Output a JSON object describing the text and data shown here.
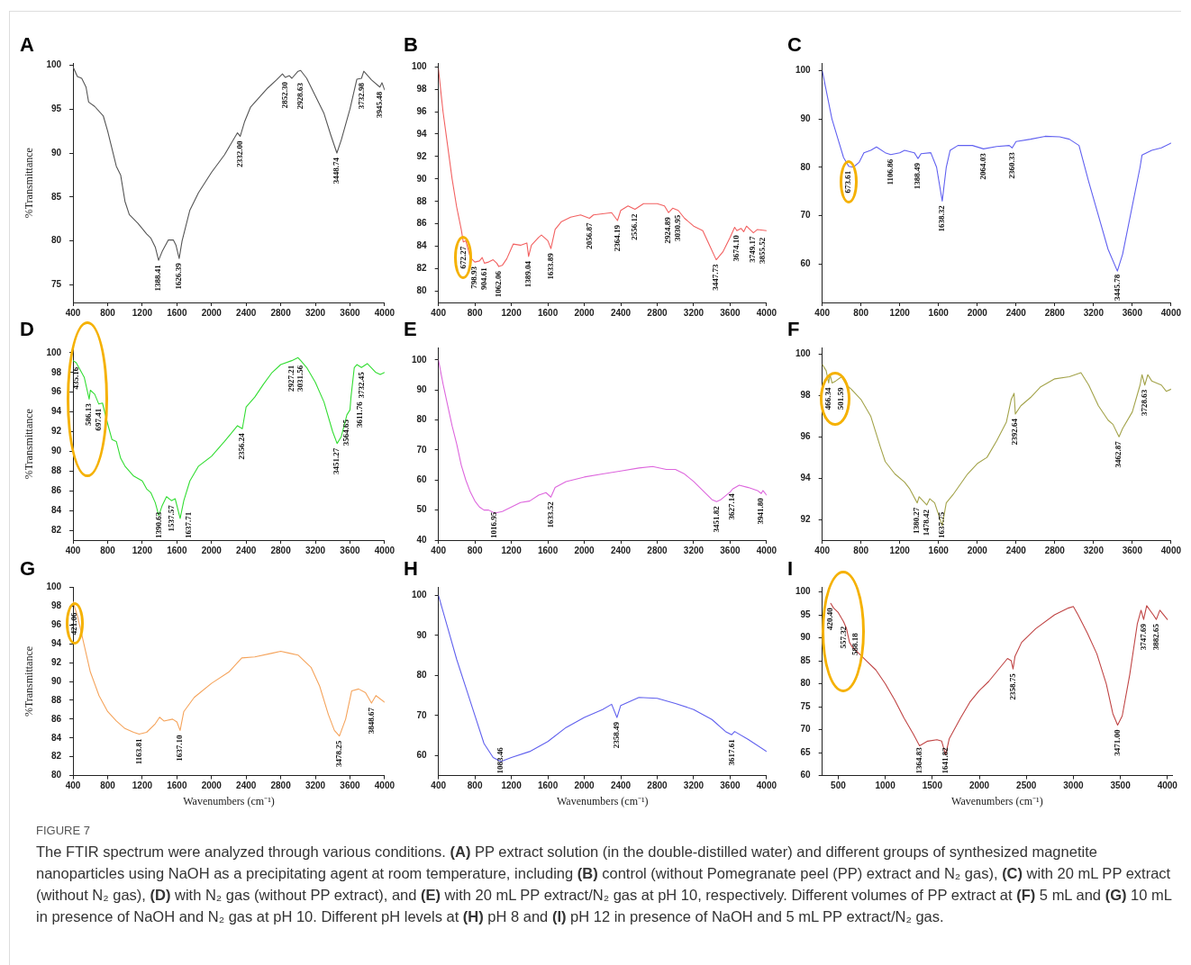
{
  "chart_data": [
    {
      "type": "line",
      "title": "A",
      "ylabel": "%Transmittance",
      "color": "#555555",
      "xlim": [
        400,
        4000
      ],
      "ylim": [
        73,
        100.2
      ],
      "xticks": [
        400,
        800,
        1200,
        1600,
        2000,
        2400,
        2800,
        3200,
        3600,
        4000
      ],
      "yticks": [
        75,
        80,
        85,
        90,
        95,
        100
      ],
      "x": [
        400,
        450,
        500,
        550,
        580,
        650,
        750,
        800,
        900,
        950,
        1000,
        1050,
        1150,
        1250,
        1300,
        1350,
        1388.41,
        1430,
        1500,
        1560,
        1590,
        1626.39,
        1660,
        1750,
        1850,
        2000,
        2150,
        2300,
        2332,
        2380,
        2450,
        2550,
        2650,
        2750,
        2820,
        2852.3,
        2900,
        2928.63,
        3000,
        3030,
        3100,
        3200,
        3300,
        3380,
        3448.74,
        3500,
        3600,
        3680,
        3732.98,
        3760,
        3850,
        3945.48,
        3970,
        4000
      ],
      "values": [
        99.8,
        98.7,
        98.5,
        97.5,
        95.8,
        95.3,
        94.2,
        92.5,
        88.5,
        87.5,
        84.5,
        83,
        82,
        80.8,
        80.3,
        79.3,
        77.8,
        78.8,
        80.1,
        80.1,
        79.5,
        78,
        80,
        83.5,
        85.5,
        87.8,
        89.8,
        92.3,
        91.9,
        93.5,
        95.2,
        96.3,
        97.4,
        98.3,
        99,
        98.6,
        98.8,
        98.5,
        99.3,
        99.4,
        98.5,
        96.5,
        94.5,
        92,
        90,
        91.5,
        95,
        98.4,
        98.5,
        99.3,
        98.3,
        97.5,
        98,
        97.2
      ],
      "annotations": [
        {
          "text": "1388.41",
          "x": 1388.41,
          "y": 77.8
        },
        {
          "text": "1626.39",
          "x": 1626.39,
          "y": 78
        },
        {
          "text": "2332.00",
          "x": 2332,
          "y": 91.9
        },
        {
          "text": "2852.30",
          "x": 2852.3,
          "y": 98.6
        },
        {
          "text": "2928.63",
          "x": 2928.63,
          "y": 98.5
        },
        {
          "text": "3448.74",
          "x": 3448.74,
          "y": 90
        },
        {
          "text": "3732.98",
          "x": 3732.98,
          "y": 98.5
        },
        {
          "text": "3945.48",
          "x": 3945.48,
          "y": 97.5
        }
      ]
    },
    {
      "type": "line",
      "title": "B",
      "color": "#f26161",
      "xlim": [
        400,
        4000
      ],
      "ylim": [
        79,
        100.3
      ],
      "xticks": [
        400,
        800,
        1200,
        1600,
        2000,
        2400,
        2800,
        3200,
        3600,
        4000
      ],
      "yticks": [
        80,
        82,
        84,
        86,
        88,
        90,
        92,
        94,
        96,
        98,
        100
      ],
      "x": [
        400,
        450,
        500,
        550,
        600,
        650,
        672.27,
        700,
        750,
        798.93,
        850,
        880,
        904.61,
        950,
        1000,
        1040,
        1062.06,
        1100,
        1150,
        1220,
        1300,
        1370,
        1389.04,
        1420,
        1500,
        1530,
        1600,
        1633.89,
        1680,
        1750,
        1850,
        1960,
        2056.87,
        2100,
        2300,
        2364.19,
        2400,
        2480,
        2556.12,
        2650,
        2800,
        2880,
        2924.89,
        2970,
        3030.95,
        3100,
        3200,
        3300,
        3380,
        3447.73,
        3520,
        3600,
        3650,
        3674.1,
        3720,
        3749.17,
        3780,
        3855.52,
        3900,
        4000
      ],
      "values": [
        99.8,
        96,
        93,
        90,
        87.5,
        85.5,
        84.4,
        84.5,
        83,
        82.6,
        82.7,
        83,
        82.5,
        82.6,
        82.8,
        82.5,
        82.2,
        82.3,
        82.9,
        84.2,
        84.1,
        84.3,
        83.1,
        84.1,
        84.8,
        85,
        84.5,
        83.8,
        85.5,
        86.2,
        86.6,
        86.8,
        86.5,
        86.8,
        87,
        86.3,
        87.2,
        87.6,
        87.3,
        87.8,
        87.8,
        87.6,
        87,
        87.4,
        87.2,
        86.5,
        85.8,
        85.4,
        84,
        82.8,
        83.5,
        84.8,
        85.7,
        85.4,
        85.6,
        85.3,
        85.8,
        85.2,
        85.5,
        85.4
      ],
      "annotations": [
        {
          "text": "672.27",
          "x": 672.27,
          "y": 84.4
        },
        {
          "text": "798.93",
          "x": 798.93,
          "y": 82.6
        },
        {
          "text": "904.61",
          "x": 904.61,
          "y": 82.5
        },
        {
          "text": "1062.06",
          "x": 1062.06,
          "y": 82.2
        },
        {
          "text": "1389.04",
          "x": 1389.04,
          "y": 83.1
        },
        {
          "text": "1633.89",
          "x": 1633.89,
          "y": 83.8
        },
        {
          "text": "2056.87",
          "x": 2056.87,
          "y": 86.5
        },
        {
          "text": "2364.19",
          "x": 2364.19,
          "y": 86.3
        },
        {
          "text": "2556.12",
          "x": 2556.12,
          "y": 87.3
        },
        {
          "text": "2924.89",
          "x": 2924.89,
          "y": 87
        },
        {
          "text": "3030.95",
          "x": 3030.95,
          "y": 87.2
        },
        {
          "text": "3447.73",
          "x": 3447.73,
          "y": 82.8
        },
        {
          "text": "3674.10",
          "x": 3674.1,
          "y": 85.4
        },
        {
          "text": "3749.17",
          "x": 3749.17,
          "y": 85.3
        },
        {
          "text": "3855.52",
          "x": 3855.52,
          "y": 85.2
        }
      ]
    },
    {
      "type": "line",
      "title": "C",
      "color": "#6060f0",
      "xlim": [
        400,
        4000
      ],
      "ylim": [
        52,
        101.5
      ],
      "xticks": [
        400,
        800,
        1200,
        1600,
        2000,
        2400,
        2800,
        3200,
        3600,
        4000
      ],
      "yticks": [
        60,
        70,
        80,
        90,
        100
      ],
      "x": [
        400,
        450,
        500,
        560,
        620,
        673.61,
        720,
        780,
        830,
        900,
        960,
        1050,
        1106.86,
        1200,
        1250,
        1350,
        1388.49,
        1420,
        1520,
        1580,
        1638.32,
        1680,
        1720,
        1800,
        1950,
        2064.03,
        2200,
        2330,
        2360.33,
        2400,
        2550,
        2700,
        2850,
        2950,
        3050,
        3150,
        3250,
        3350,
        3445.78,
        3500,
        3600,
        3680,
        3700,
        3800,
        3900,
        4000
      ],
      "values": [
        100,
        95,
        90,
        86,
        82,
        80.2,
        80,
        81,
        83,
        83.5,
        84.2,
        83,
        82.6,
        83,
        83.5,
        83,
        81.8,
        82.8,
        83,
        80,
        73,
        80,
        83.5,
        84.5,
        84.5,
        83.8,
        84.3,
        84.5,
        84,
        85.3,
        85.8,
        86.4,
        86.3,
        85.8,
        84.5,
        77,
        70,
        63,
        58.5,
        62,
        72,
        80,
        82.5,
        83.5,
        84,
        85
      ],
      "annotations": [
        {
          "text": "673.61",
          "x": 673.61,
          "y": 80.2
        },
        {
          "text": "1106.86",
          "x": 1106.86,
          "y": 82.6
        },
        {
          "text": "1388.49",
          "x": 1388.49,
          "y": 81.8
        },
        {
          "text": "1638.32",
          "x": 1638.32,
          "y": 73
        },
        {
          "text": "2064.03",
          "x": 2064.03,
          "y": 83.8
        },
        {
          "text": "2360.33",
          "x": 2360.33,
          "y": 84
        },
        {
          "text": "3445.78",
          "x": 3445.78,
          "y": 58.5
        }
      ]
    },
    {
      "type": "line",
      "title": "D",
      "ylabel": "%Transmittance",
      "color": "#33dd33",
      "xlim": [
        400,
        4000
      ],
      "ylim": [
        81,
        100.5
      ],
      "xticks": [
        400,
        800,
        1200,
        1600,
        2000,
        2400,
        2800,
        3200,
        3600,
        4000
      ],
      "yticks": [
        82,
        84,
        86,
        88,
        90,
        92,
        94,
        96,
        98,
        100
      ],
      "x": [
        400,
        435.16,
        480,
        530,
        586.13,
        600,
        650,
        697.41,
        740,
        800,
        850,
        900,
        950,
        1000,
        1100,
        1200,
        1250,
        1300,
        1350,
        1390.63,
        1430,
        1480,
        1537.57,
        1580,
        1637.71,
        1680,
        1750,
        1850,
        2000,
        2150,
        2300,
        2356.24,
        2400,
        2500,
        2600,
        2700,
        2800,
        2927.21,
        3000,
        3031.56,
        3100,
        3200,
        3300,
        3400,
        3451.27,
        3500,
        3564.65,
        3600,
        3611.76,
        3650,
        3680,
        3732.45,
        3800,
        3900,
        3950,
        4000
      ],
      "values": [
        99.2,
        99,
        98.3,
        97.5,
        95.3,
        96.2,
        95.8,
        94.8,
        94.9,
        92.8,
        91.2,
        91,
        89.3,
        88.5,
        87.5,
        87,
        86.2,
        85.8,
        84.8,
        83.5,
        84.5,
        85.4,
        85,
        85.2,
        83.2,
        85,
        87,
        88.5,
        89.5,
        91,
        92.6,
        92.3,
        94.5,
        95.5,
        96.8,
        98,
        98.8,
        99.2,
        99.5,
        99.2,
        98.5,
        97,
        95,
        92,
        90.8,
        91.5,
        93.7,
        94.2,
        95.5,
        98.5,
        98.8,
        98.5,
        98.9,
        98,
        97.8,
        98
      ],
      "annotations": [
        {
          "text": "435.16",
          "x": 435.16,
          "y": 99
        },
        {
          "text": "586.13",
          "x": 586.13,
          "y": 95.3
        },
        {
          "text": "697.41",
          "x": 697.41,
          "y": 94.8
        },
        {
          "text": "1390.63",
          "x": 1390.63,
          "y": 83.5
        },
        {
          "text": "1537.57",
          "x": 1537.57,
          "y": 85
        },
        {
          "text": "1637.71",
          "x": 1637.71,
          "y": 83.2
        },
        {
          "text": "2356.24",
          "x": 2356.24,
          "y": 92.3
        },
        {
          "text": "2927.21",
          "x": 2927.21,
          "y": 99.2
        },
        {
          "text": "3031.56",
          "x": 3031.56,
          "y": 99.2
        },
        {
          "text": "3451.27",
          "x": 3451.27,
          "y": 90.8
        },
        {
          "text": "3564.65",
          "x": 3564.65,
          "y": 93.7
        },
        {
          "text": "3611.76",
          "x": 3611.76,
          "y": 95.5
        },
        {
          "text": "3732.45",
          "x": 3732.45,
          "y": 98.5
        }
      ]
    },
    {
      "type": "line",
      "title": "E",
      "color": "#dd66dd",
      "xlim": [
        400,
        4000
      ],
      "ylim": [
        40,
        104
      ],
      "xticks": [
        400,
        800,
        1200,
        1600,
        2000,
        2400,
        2800,
        3200,
        3600,
        4000
      ],
      "yticks": [
        40,
        50,
        60,
        70,
        80,
        90,
        100
      ],
      "x": [
        400,
        450,
        500,
        550,
        600,
        650,
        700,
        750,
        800,
        850,
        900,
        950,
        1016.95,
        1100,
        1200,
        1300,
        1400,
        1500,
        1580,
        1633.52,
        1680,
        1800,
        2000,
        2200,
        2400,
        2600,
        2750,
        2900,
        3000,
        3100,
        3200,
        3300,
        3400,
        3451.82,
        3500,
        3600,
        3627.14,
        3700,
        3800,
        3900,
        3941.8,
        3960,
        4000
      ],
      "values": [
        100,
        92,
        85,
        78,
        72,
        65,
        60,
        56,
        53,
        51,
        50,
        50,
        49,
        49.5,
        51,
        52.5,
        53,
        55,
        55.8,
        54.3,
        57.5,
        59.5,
        61,
        62,
        63,
        64,
        64.5,
        63.5,
        63.5,
        62,
        59.5,
        56.5,
        53.5,
        52.8,
        53.5,
        56,
        57,
        58.3,
        57.5,
        56.5,
        55.5,
        56.5,
        55
      ],
      "annotations": [
        {
          "text": "1016.95",
          "x": 1016.95,
          "y": 49
        },
        {
          "text": "1633.52",
          "x": 1633.52,
          "y": 54.3
        },
        {
          "text": "3451.82",
          "x": 3451.82,
          "y": 52.8
        },
        {
          "text": "3627.14",
          "x": 3627.14,
          "y": 57
        },
        {
          "text": "3941.80",
          "x": 3941.8,
          "y": 55.5
        }
      ]
    },
    {
      "type": "line",
      "title": "F",
      "color": "#a3a34a",
      "xlim": [
        400,
        4000
      ],
      "ylim": [
        91,
        100.3
      ],
      "xticks": [
        400,
        800,
        1200,
        1600,
        2000,
        2400,
        2800,
        3200,
        3600,
        4000
      ],
      "yticks": [
        92,
        94,
        96,
        98,
        100
      ],
      "x": [
        400,
        440,
        466.34,
        480,
        501.59,
        540,
        600,
        650,
        700,
        800,
        900,
        1000,
        1050,
        1150,
        1250,
        1300,
        1380.27,
        1400,
        1478.42,
        1510,
        1560,
        1637.75,
        1680,
        1750,
        1900,
        2000,
        2100,
        2200,
        2300,
        2350,
        2380,
        2392.64,
        2450,
        2550,
        2650,
        2800,
        2950,
        3070,
        3150,
        3250,
        3350,
        3400,
        3462.87,
        3500,
        3600,
        3680,
        3700,
        3728.63,
        3760,
        3800,
        3900,
        3950,
        4000
      ],
      "values": [
        99.5,
        99.2,
        98.6,
        99,
        98.6,
        98.7,
        98.9,
        98.5,
        98.3,
        97.8,
        97,
        95.5,
        94.8,
        94.2,
        93.8,
        93.5,
        92.8,
        93.1,
        92.7,
        93,
        92.8,
        91.7,
        92.8,
        93.2,
        94.2,
        94.7,
        95,
        95.8,
        96.7,
        97.8,
        98.1,
        97.1,
        97.5,
        97.9,
        98.4,
        98.8,
        98.9,
        99.1,
        98.5,
        97.5,
        96.8,
        96.6,
        96,
        96.4,
        97.2,
        98.5,
        99,
        98.5,
        99,
        98.7,
        98.5,
        98.2,
        98.3
      ],
      "annotations": [
        {
          "text": "466.34",
          "x": 466.34,
          "y": 98.6
        },
        {
          "text": "501.59",
          "x": 501.59,
          "y": 98.6
        },
        {
          "text": "1380.27",
          "x": 1380.27,
          "y": 92.8
        },
        {
          "text": "1478.42",
          "x": 1478.42,
          "y": 92.7
        },
        {
          "text": "1637.75",
          "x": 1637.75,
          "y": 91.7
        },
        {
          "text": "2392.64",
          "x": 2392.64,
          "y": 97.1
        },
        {
          "text": "3462.87",
          "x": 3462.87,
          "y": 96
        },
        {
          "text": "3728.63",
          "x": 3728.63,
          "y": 98.5
        }
      ]
    },
    {
      "type": "line",
      "title": "G",
      "ylabel": "%Transmittance",
      "xlabel": "Wavenumbers (cm⁻¹)",
      "color": "#f5a45c",
      "xlim": [
        400,
        4000
      ],
      "ylim": [
        80,
        100
      ],
      "xticks": [
        400,
        800,
        1200,
        1600,
        2000,
        2400,
        2800,
        3200,
        3600,
        4000
      ],
      "yticks": [
        80,
        82,
        84,
        86,
        88,
        90,
        92,
        94,
        96,
        98,
        100
      ],
      "x": [
        400,
        421.06,
        450,
        500,
        550,
        600,
        700,
        800,
        900,
        1000,
        1100,
        1163.81,
        1250,
        1350,
        1400,
        1450,
        1550,
        1600,
        1637.1,
        1680,
        1800,
        2000,
        2200,
        2350,
        2500,
        2700,
        2800,
        2900,
        3000,
        3150,
        3250,
        3350,
        3420,
        3478.25,
        3550,
        3620,
        3700,
        3780,
        3848.67,
        3900,
        4000
      ],
      "values": [
        98.5,
        97.8,
        97,
        95,
        93,
        91,
        88.5,
        86.8,
        85.8,
        85,
        84.6,
        84.4,
        84.6,
        85.5,
        86.2,
        85.8,
        86,
        85.7,
        84.8,
        86.8,
        88.3,
        89.8,
        91,
        92.5,
        92.6,
        93,
        93.2,
        93,
        92.8,
        91.5,
        89.5,
        86.5,
        84.8,
        84.2,
        86,
        89,
        89.2,
        88.8,
        87.7,
        88.5,
        87.8
      ],
      "annotations": [
        {
          "text": "421.06",
          "x": 421.06,
          "y": 97.8
        },
        {
          "text": "1163.81",
          "x": 1163.81,
          "y": 84.4
        },
        {
          "text": "1637.10",
          "x": 1637.1,
          "y": 84.8
        },
        {
          "text": "3478.25",
          "x": 3478.25,
          "y": 84.2
        },
        {
          "text": "3848.67",
          "x": 3848.67,
          "y": 87.7
        }
      ]
    },
    {
      "type": "line",
      "title": "H",
      "xlabel": "Wavenumbers (cm⁻¹)",
      "color": "#6060ee",
      "xlim": [
        400,
        4000
      ],
      "ylim": [
        55,
        102
      ],
      "xticks": [
        400,
        800,
        1200,
        1600,
        2000,
        2400,
        2800,
        3200,
        3600,
        4000
      ],
      "yticks": [
        60,
        70,
        80,
        90,
        100
      ],
      "x": [
        400,
        450,
        500,
        600,
        700,
        800,
        900,
        1000,
        1083.46,
        1200,
        1400,
        1600,
        1800,
        2000,
        2200,
        2300,
        2358.49,
        2400,
        2600,
        2800,
        3000,
        3200,
        3400,
        3550,
        3617.61,
        3650,
        3800,
        4000
      ],
      "values": [
        100,
        96,
        92,
        84,
        77,
        70,
        63,
        59.5,
        58.5,
        59.5,
        61,
        63.5,
        67,
        69.5,
        71.5,
        72.8,
        69.5,
        72.5,
        74.5,
        74.3,
        73,
        71.5,
        69,
        66,
        65.2,
        66,
        64,
        61
      ],
      "annotations": [
        {
          "text": "1083.46",
          "x": 1083.46,
          "y": 58.5
        },
        {
          "text": "2358.49",
          "x": 2358.49,
          "y": 69.5
        },
        {
          "text": "3617.61",
          "x": 3617.61,
          "y": 65.2
        }
      ]
    },
    {
      "type": "line",
      "title": "I",
      "xlabel": "Wavenumbers (cm⁻¹)",
      "color": "#c04545",
      "xlim": [
        330,
        4050
      ],
      "ylim": [
        60,
        101
      ],
      "xticks": [
        500,
        1000,
        1500,
        2000,
        2500,
        3000,
        3500,
        4000
      ],
      "yticks": [
        60,
        65,
        70,
        75,
        80,
        85,
        90,
        95,
        100
      ],
      "x": [
        420.4,
        450,
        500,
        557.32,
        588.18,
        620,
        650,
        700,
        800,
        900,
        1000,
        1100,
        1200,
        1300,
        1364.83,
        1450,
        1550,
        1600,
        1641.82,
        1680,
        1800,
        1900,
        2000,
        2100,
        2200,
        2300,
        2340,
        2358.75,
        2380,
        2450,
        2600,
        2800,
        2950,
        3000,
        3050,
        3150,
        3250,
        3350,
        3420,
        3471,
        3520,
        3600,
        3680,
        3720,
        3747.69,
        3780,
        3850,
        3882.65,
        3920,
        4000
      ],
      "values": [
        97.5,
        96.5,
        95.5,
        93.5,
        92,
        89,
        88,
        87,
        85,
        83,
        80,
        76.5,
        72.5,
        69,
        66.5,
        67.5,
        67.8,
        67.5,
        64.5,
        68,
        72.5,
        76,
        78.5,
        80.5,
        83,
        85.5,
        85,
        83.2,
        86,
        89,
        92,
        95,
        96.5,
        96.8,
        95,
        91,
        86.5,
        80,
        73.5,
        71,
        73,
        82,
        93,
        96,
        94,
        97,
        95,
        94,
        96,
        94
      ],
      "annotations": [
        {
          "text": "420.40",
          "x": 420.4,
          "y": 97.5
        },
        {
          "text": "557.32",
          "x": 557.32,
          "y": 93.5
        },
        {
          "text": "588.18",
          "x": 588.18,
          "y": 92
        },
        {
          "text": "1364.83",
          "x": 1364.83,
          "y": 66.5
        },
        {
          "text": "1641.82",
          "x": 1641.82,
          "y": 64.5
        },
        {
          "text": "2358.75",
          "x": 2358.75,
          "y": 83.2
        },
        {
          "text": "3471.00",
          "x": 3471,
          "y": 71
        },
        {
          "text": "3747.69",
          "x": 3747.69,
          "y": 94
        },
        {
          "text": "3882.65",
          "x": 3882.65,
          "y": 94
        }
      ]
    },
    {
      "type": "other",
      "title": "FIGURE 7",
      "annotations": [
        "The FTIR spectrum were analyzed through various conditions. (A) PP extract solution (in the double-distilled water) and different groups of synthesized magnetite nanoparticles using NaOH as a precipitating agent at room temperature, including (B) control (without Pomegranate peel (PP) extract and N₂ gas), (C) with 20 mL PP extract (without N₂ gas), (D) with N₂ gas (without PP extract), and (E) with 20 mL PP extract/N₂ gas at pH 10, respectively. Different volumes of PP extract at (F) 5 mL and (G) 10 mL in presence of NaOH and N₂ gas at pH 10. Different pH levels at (H) pH 8 and (I) pH 12 in presence of NaOH and 5 mL PP extract/N₂ gas."
      ]
    }
  ]
}
